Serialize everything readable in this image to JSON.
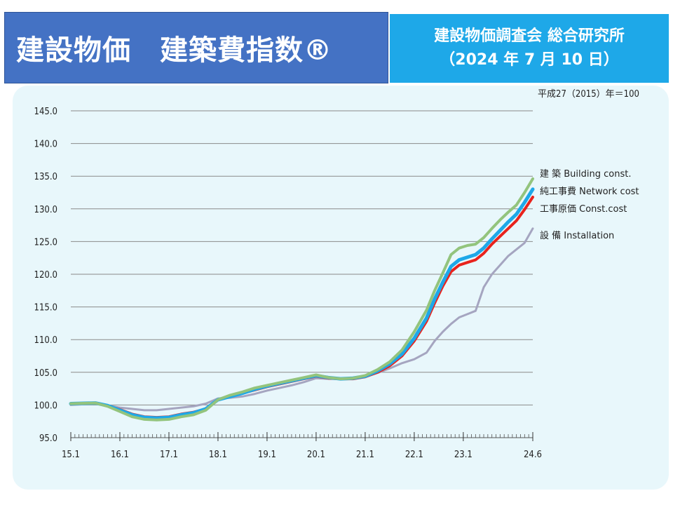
{
  "header": {
    "title": "建設物価　建築費指数®",
    "source_line1": "建設物価調査会 総合研究所",
    "source_line2": "（2024 年 7 月 10 日）"
  },
  "colors": {
    "title_bg": "#4472c4",
    "source_bg": "#1ea8e8",
    "panel_bg": "#e8f7fb",
    "building": "#93c47d",
    "network": "#1ea8e8",
    "construction": "#e8231d",
    "installation": "#a5a5c0"
  },
  "chart_data": {
    "type": "line",
    "title": "",
    "base_note": "平成27（2015）年＝100",
    "xlabel": "",
    "ylabel": "",
    "ylim": [
      95,
      145
    ],
    "yticks": [
      95.0,
      100.0,
      105.0,
      110.0,
      115.0,
      120.0,
      125.0,
      130.0,
      135.0,
      140.0,
      145.0
    ],
    "ytick_labels": [
      "95.0",
      "100.0",
      "105.0",
      "110.0",
      "115.0",
      "120.0",
      "125.0",
      "130.0",
      "135.0",
      "140.0",
      "145.0"
    ],
    "x_ticks": [
      {
        "t": 0,
        "label": "15.1"
      },
      {
        "t": 12,
        "label": "16.1"
      },
      {
        "t": 24,
        "label": "17.1"
      },
      {
        "t": 36,
        "label": "18.1"
      },
      {
        "t": 48,
        "label": "19.1"
      },
      {
        "t": 60,
        "label": "20.1"
      },
      {
        "t": 72,
        "label": "21.1"
      },
      {
        "t": 84,
        "label": "22.1"
      },
      {
        "t": 96,
        "label": "23.1"
      },
      {
        "t": 113,
        "label": "24.6"
      }
    ],
    "x_range_months": [
      0,
      113
    ],
    "grid": true,
    "legend_position": "right",
    "series": [
      {
        "name": "建 築 Building const.",
        "key": "building",
        "points": [
          [
            0,
            100.2
          ],
          [
            6,
            100.3
          ],
          [
            9,
            99.8
          ],
          [
            12,
            99.0
          ],
          [
            15,
            98.2
          ],
          [
            18,
            97.8
          ],
          [
            21,
            97.7
          ],
          [
            24,
            97.8
          ],
          [
            27,
            98.2
          ],
          [
            30,
            98.5
          ],
          [
            33,
            99.2
          ],
          [
            36,
            100.8
          ],
          [
            39,
            101.5
          ],
          [
            42,
            102.0
          ],
          [
            45,
            102.6
          ],
          [
            48,
            103.0
          ],
          [
            51,
            103.4
          ],
          [
            54,
            103.8
          ],
          [
            57,
            104.2
          ],
          [
            60,
            104.6
          ],
          [
            63,
            104.2
          ],
          [
            66,
            104.0
          ],
          [
            69,
            104.1
          ],
          [
            72,
            104.5
          ],
          [
            75,
            105.4
          ],
          [
            78,
            106.6
          ],
          [
            81,
            108.4
          ],
          [
            84,
            111.2
          ],
          [
            87,
            114.5
          ],
          [
            89,
            117.5
          ],
          [
            91,
            120.2
          ],
          [
            93,
            123.0
          ],
          [
            95,
            124.0
          ],
          [
            97,
            124.4
          ],
          [
            99,
            124.6
          ],
          [
            101,
            125.6
          ],
          [
            103,
            127.0
          ],
          [
            105,
            128.3
          ],
          [
            107,
            129.5
          ],
          [
            109,
            130.6
          ],
          [
            111,
            132.5
          ],
          [
            113,
            134.6
          ]
        ]
      },
      {
        "name": "純工事費 Network cost",
        "key": "network",
        "points": [
          [
            0,
            100.2
          ],
          [
            6,
            100.3
          ],
          [
            9,
            99.9
          ],
          [
            12,
            99.2
          ],
          [
            15,
            98.5
          ],
          [
            18,
            98.1
          ],
          [
            21,
            98.0
          ],
          [
            24,
            98.1
          ],
          [
            27,
            98.5
          ],
          [
            30,
            98.8
          ],
          [
            33,
            99.4
          ],
          [
            36,
            100.8
          ],
          [
            39,
            101.3
          ],
          [
            42,
            101.8
          ],
          [
            45,
            102.4
          ],
          [
            48,
            102.9
          ],
          [
            51,
            103.3
          ],
          [
            54,
            103.7
          ],
          [
            57,
            104.1
          ],
          [
            60,
            104.5
          ],
          [
            63,
            104.2
          ],
          [
            66,
            104.0
          ],
          [
            69,
            104.1
          ],
          [
            72,
            104.4
          ],
          [
            75,
            105.2
          ],
          [
            78,
            106.3
          ],
          [
            81,
            107.8
          ],
          [
            84,
            110.2
          ],
          [
            87,
            113.3
          ],
          [
            89,
            116.2
          ],
          [
            91,
            118.8
          ],
          [
            93,
            121.2
          ],
          [
            95,
            122.2
          ],
          [
            97,
            122.6
          ],
          [
            99,
            123.0
          ],
          [
            101,
            124.0
          ],
          [
            103,
            125.4
          ],
          [
            105,
            126.7
          ],
          [
            107,
            128.0
          ],
          [
            109,
            129.2
          ],
          [
            111,
            131.0
          ],
          [
            113,
            133.0
          ]
        ]
      },
      {
        "name": "工事原価 Const.cost",
        "key": "construction",
        "points": [
          [
            0,
            100.2
          ],
          [
            6,
            100.3
          ],
          [
            9,
            99.9
          ],
          [
            12,
            99.3
          ],
          [
            15,
            98.6
          ],
          [
            18,
            98.2
          ],
          [
            21,
            98.1
          ],
          [
            24,
            98.2
          ],
          [
            27,
            98.6
          ],
          [
            30,
            98.9
          ],
          [
            33,
            99.4
          ],
          [
            36,
            100.8
          ],
          [
            39,
            101.3
          ],
          [
            42,
            101.8
          ],
          [
            45,
            102.3
          ],
          [
            48,
            102.8
          ],
          [
            51,
            103.2
          ],
          [
            54,
            103.6
          ],
          [
            57,
            104.0
          ],
          [
            60,
            104.4
          ],
          [
            63,
            104.1
          ],
          [
            66,
            104.0
          ],
          [
            69,
            104.0
          ],
          [
            72,
            104.3
          ],
          [
            75,
            105.0
          ],
          [
            78,
            106.0
          ],
          [
            81,
            107.5
          ],
          [
            84,
            109.8
          ],
          [
            87,
            112.8
          ],
          [
            89,
            115.6
          ],
          [
            91,
            118.2
          ],
          [
            93,
            120.4
          ],
          [
            95,
            121.4
          ],
          [
            97,
            121.8
          ],
          [
            99,
            122.2
          ],
          [
            101,
            123.2
          ],
          [
            103,
            124.6
          ],
          [
            105,
            125.8
          ],
          [
            107,
            127.0
          ],
          [
            109,
            128.2
          ],
          [
            111,
            129.9
          ],
          [
            113,
            131.8
          ]
        ]
      },
      {
        "name": "設 備 Installation",
        "key": "installation",
        "points": [
          [
            0,
            100.0
          ],
          [
            6,
            100.2
          ],
          [
            9,
            99.9
          ],
          [
            12,
            99.6
          ],
          [
            15,
            99.4
          ],
          [
            18,
            99.2
          ],
          [
            21,
            99.2
          ],
          [
            24,
            99.4
          ],
          [
            27,
            99.6
          ],
          [
            30,
            99.8
          ],
          [
            33,
            100.2
          ],
          [
            36,
            101.0
          ],
          [
            39,
            101.1
          ],
          [
            42,
            101.3
          ],
          [
            45,
            101.7
          ],
          [
            48,
            102.2
          ],
          [
            51,
            102.6
          ],
          [
            54,
            103.0
          ],
          [
            57,
            103.5
          ],
          [
            60,
            104.1
          ],
          [
            63,
            104.0
          ],
          [
            66,
            104.0
          ],
          [
            69,
            104.1
          ],
          [
            72,
            104.3
          ],
          [
            75,
            104.9
          ],
          [
            78,
            105.6
          ],
          [
            81,
            106.4
          ],
          [
            84,
            107.0
          ],
          [
            87,
            108.0
          ],
          [
            89,
            109.8
          ],
          [
            91,
            111.2
          ],
          [
            93,
            112.4
          ],
          [
            95,
            113.4
          ],
          [
            97,
            113.9
          ],
          [
            99,
            114.4
          ],
          [
            101,
            118.0
          ],
          [
            103,
            120.0
          ],
          [
            105,
            121.4
          ],
          [
            107,
            122.8
          ],
          [
            109,
            123.8
          ],
          [
            111,
            124.8
          ],
          [
            113,
            127.0
          ]
        ]
      }
    ]
  }
}
